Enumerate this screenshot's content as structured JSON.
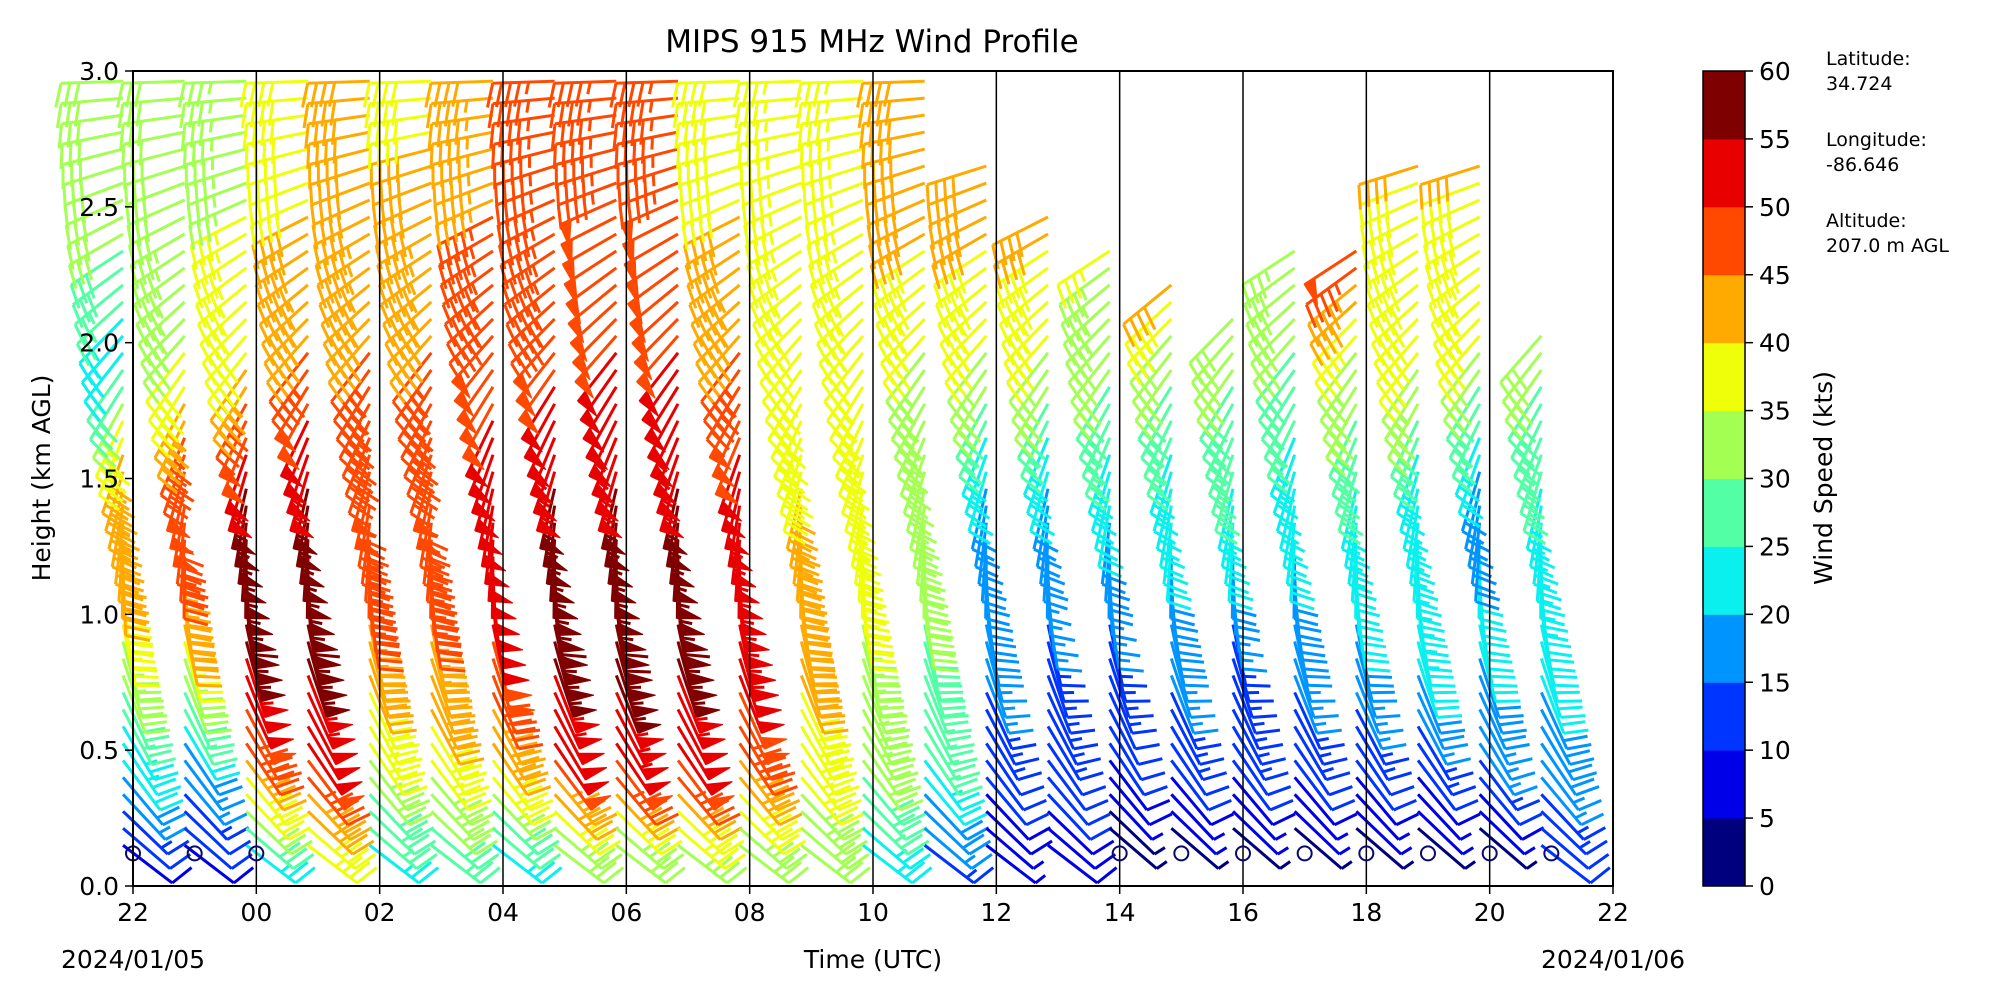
{
  "chart_data": {
    "type": "wind_barb_profile",
    "title": "MIPS 915 MHz Wind Profile",
    "xlabel": "Time (UTC)",
    "ylabel": "Height (km AGL)",
    "x_ticks": [
      "22",
      "00",
      "02",
      "04",
      "06",
      "08",
      "10",
      "12",
      "14",
      "16",
      "18",
      "20",
      "22"
    ],
    "x_tick_hours": [
      -2,
      0,
      2,
      4,
      6,
      8,
      10,
      12,
      14,
      16,
      18,
      20,
      22
    ],
    "start_date_label": "2024/01/05",
    "end_date_label": "2024/01/06",
    "xlim_hours": [
      -2,
      22
    ],
    "ylim": [
      0.0,
      3.0
    ],
    "y_ticks": [
      "0.0",
      "0.5",
      "1.0",
      "1.5",
      "2.0",
      "2.5",
      "3.0"
    ],
    "vertical_lines_hours": [
      0,
      2,
      4,
      6,
      8,
      10,
      12,
      14,
      16,
      18,
      20
    ],
    "colorbar": {
      "label": "Wind Speed (kts)",
      "ticks": [
        "0",
        "5",
        "10",
        "15",
        "20",
        "25",
        "30",
        "35",
        "40",
        "45",
        "50",
        "55",
        "60"
      ],
      "colors": [
        "#00007f",
        "#0000e8",
        "#0034ff",
        "#0094ff",
        "#09f0ee",
        "#53ffa4",
        "#a4ff53",
        "#eeff09",
        "#ffaa00",
        "#ff4800",
        "#e80000",
        "#7f0000"
      ]
    },
    "profile_times_hours": [
      -2,
      -1,
      0,
      1,
      2,
      3,
      4,
      5,
      6,
      7,
      8,
      9,
      10,
      11,
      12,
      13,
      14,
      15,
      16,
      17,
      18,
      19,
      20,
      21
    ],
    "profile_tops_km": [
      3.0,
      3.0,
      3.0,
      3.0,
      3.0,
      3.0,
      3.0,
      3.0,
      3.0,
      3.0,
      3.0,
      3.0,
      3.0,
      3.0,
      2.65,
      2.5,
      2.38,
      2.22,
      2.1,
      2.38,
      2.36,
      2.65,
      2.65,
      2.08
    ],
    "wind_speed_profiles_kts": [
      {
        "time_hours": -2,
        "heights_km": [
          0.1,
          0.5,
          1.0,
          1.5,
          2.0,
          2.5,
          3.0
        ],
        "speeds_kts": [
          8,
          22,
          38,
          45,
          22,
          32,
          32
        ]
      },
      {
        "time_hours": -1,
        "heights_km": [
          0.1,
          0.5,
          1.0,
          1.5,
          2.0,
          2.5,
          3.0
        ],
        "speeds_kts": [
          8,
          18,
          42,
          50,
          35,
          32,
          32
        ]
      },
      {
        "time_hours": 0,
        "heights_km": [
          0.1,
          0.5,
          1.0,
          1.5,
          2.0,
          2.5,
          3.0
        ],
        "speeds_kts": [
          22,
          45,
          58,
          55,
          38,
          35,
          33
        ]
      },
      {
        "time_hours": 1,
        "heights_km": [
          0.1,
          0.5,
          1.0,
          1.5,
          2.0,
          2.5,
          3.0
        ],
        "speeds_kts": [
          35,
          50,
          58,
          55,
          45,
          40,
          38
        ]
      },
      {
        "time_hours": 2,
        "heights_km": [
          0.1,
          0.5,
          1.0,
          1.5,
          2.0,
          2.5,
          3.0
        ],
        "speeds_kts": [
          22,
          35,
          45,
          48,
          45,
          42,
          40
        ]
      },
      {
        "time_hours": 3,
        "heights_km": [
          0.1,
          0.5,
          1.0,
          1.5,
          2.0,
          2.5,
          3.0
        ],
        "speeds_kts": [
          25,
          38,
          45,
          48,
          45,
          42,
          38
        ]
      },
      {
        "time_hours": 4,
        "heights_km": [
          0.1,
          0.5,
          1.0,
          1.5,
          2.0,
          2.5,
          3.0
        ],
        "speeds_kts": [
          22,
          40,
          52,
          52,
          48,
          45,
          42
        ]
      },
      {
        "time_hours": 5,
        "heights_km": [
          0.1,
          0.5,
          1.0,
          1.5,
          2.0,
          2.5,
          3.0
        ],
        "speeds_kts": [
          28,
          50,
          58,
          55,
          48,
          45,
          45
        ]
      },
      {
        "time_hours": 6,
        "heights_km": [
          0.1,
          0.5,
          1.0,
          1.5,
          2.0,
          2.5,
          3.0
        ],
        "speeds_kts": [
          28,
          52,
          58,
          55,
          50,
          48,
          45
        ]
      },
      {
        "time_hours": 7,
        "heights_km": [
          0.1,
          0.5,
          1.0,
          1.5,
          2.0,
          2.5,
          3.0
        ],
        "speeds_kts": [
          30,
          50,
          58,
          55,
          50,
          48,
          45
        ]
      },
      {
        "time_hours": 8,
        "heights_km": [
          0.1,
          0.5,
          1.0,
          1.5,
          2.0,
          2.5,
          3.0
        ],
        "speeds_kts": [
          30,
          45,
          55,
          52,
          45,
          40,
          38
        ]
      },
      {
        "time_hours": 9,
        "heights_km": [
          0.1,
          0.5,
          1.0,
          1.5,
          2.0,
          2.5,
          3.0
        ],
        "speeds_kts": [
          30,
          38,
          42,
          40,
          38,
          36,
          35
        ]
      },
      {
        "time_hours": 10,
        "heights_km": [
          0.1,
          0.5,
          1.0,
          1.5,
          2.0,
          2.5,
          3.0
        ],
        "speeds_kts": [
          22,
          32,
          35,
          35,
          35,
          36,
          35
        ]
      },
      {
        "time_hours": 11,
        "heights_km": [
          0.1,
          0.5,
          1.0,
          1.5,
          2.0,
          2.5,
          3.0
        ],
        "speeds_kts": [
          12,
          25,
          30,
          32,
          35,
          42,
          40
        ]
      },
      {
        "time_hours": 12,
        "heights_km": [
          0.1,
          0.5,
          1.0,
          1.5,
          2.0,
          2.5
        ],
        "speeds_kts": [
          5,
          12,
          18,
          20,
          35,
          42
        ]
      },
      {
        "time_hours": 13,
        "heights_km": [
          0.1,
          0.5,
          1.0,
          1.5,
          2.0,
          2.5
        ],
        "speeds_kts": [
          8,
          12,
          15,
          20,
          35,
          42
        ]
      },
      {
        "time_hours": 14,
        "heights_km": [
          0.1,
          0.5,
          1.0,
          1.5,
          2.0,
          2.3
        ],
        "speeds_kts": [
          0,
          10,
          15,
          22,
          32,
          35
        ]
      },
      {
        "time_hours": 15,
        "heights_km": [
          0.1,
          0.5,
          1.0,
          1.5,
          2.0,
          2.2
        ],
        "speeds_kts": [
          0,
          12,
          18,
          22,
          32,
          42
        ]
      },
      {
        "time_hours": 16,
        "heights_km": [
          0.1,
          0.5,
          1.0,
          1.5,
          2.0
        ],
        "speeds_kts": [
          0,
          12,
          15,
          25,
          32
        ]
      },
      {
        "time_hours": 17,
        "heights_km": [
          0.1,
          0.5,
          1.0,
          1.5,
          2.0,
          2.35
        ],
        "speeds_kts": [
          0,
          12,
          18,
          22,
          30,
          33
        ]
      },
      {
        "time_hours": 18,
        "heights_km": [
          0.1,
          0.5,
          1.0,
          1.5,
          2.0,
          2.35
        ],
        "speeds_kts": [
          0,
          12,
          20,
          25,
          35,
          48
        ]
      },
      {
        "time_hours": 19,
        "heights_km": [
          0.1,
          0.5,
          1.0,
          1.5,
          2.0,
          2.6
        ],
        "speeds_kts": [
          0,
          12,
          25,
          22,
          38,
          40
        ]
      },
      {
        "time_hours": 20,
        "heights_km": [
          0.1,
          0.5,
          1.0,
          1.5,
          2.0,
          2.6
        ],
        "speeds_kts": [
          0,
          15,
          22,
          18,
          35,
          40
        ]
      },
      {
        "time_hours": 21,
        "heights_km": [
          0.1,
          0.5,
          1.0,
          1.5,
          2.0
        ],
        "speeds_kts": [
          10,
          18,
          22,
          25,
          32
        ]
      }
    ],
    "calm_marker_times_hours": [
      -2,
      -1,
      0,
      14,
      15,
      16,
      17,
      18,
      19,
      20,
      21
    ],
    "grid": false
  },
  "station_info": {
    "latitude_label": "Latitude:",
    "latitude_value": "34.724",
    "longitude_label": "Longitude:",
    "longitude_value": "-86.646",
    "altitude_label": "Altitude:",
    "altitude_value": "207.0 m AGL"
  }
}
